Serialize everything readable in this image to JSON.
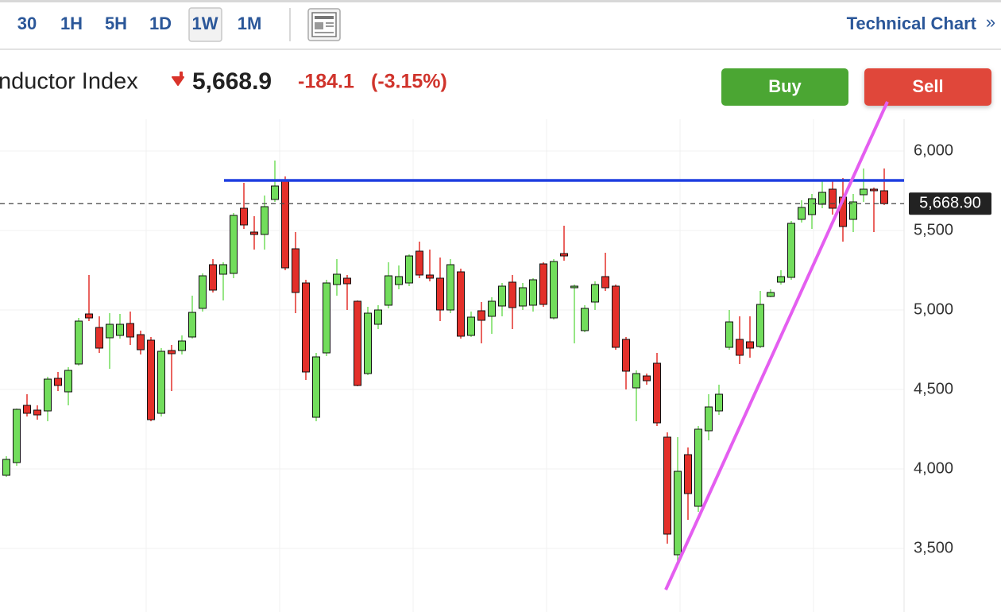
{
  "toolbar": {
    "intervals": [
      "30",
      "1H",
      "5H",
      "1D",
      "1W",
      "1M"
    ],
    "selected_index": 4,
    "link": "Technical Chart",
    "link_icon": "»"
  },
  "quote": {
    "name": "nductor Index",
    "price": "5,668.9",
    "change": "-184.1",
    "change_pct": "(-3.15%)"
  },
  "buttons": [
    "Buy",
    "Sell"
  ],
  "chart_data": {
    "type": "candlestick",
    "up_color": "#72dd5c",
    "down_color": "#e3302a",
    "open": [
      3960,
      4040,
      4400,
      4370,
      4365,
      4570,
      4485,
      4660,
      4975,
      4890,
      4825,
      4840,
      4915,
      4845,
      4810,
      4350,
      4745,
      4745,
      4830,
      5010,
      5285,
      5225,
      5230,
      5640,
      5490,
      5475,
      5695,
      5815,
      5385,
      5170,
      4325,
      4730,
      5160,
      5200,
      5055,
      4600,
      4910,
      5030,
      5160,
      5170,
      5370,
      5220,
      5200,
      5000,
      5240,
      4840,
      4995,
      4960,
      5025,
      5175,
      5025,
      5030,
      5290,
      4950,
      5355,
      5140,
      4870,
      5050,
      5210,
      5150,
      4815,
      4510,
      4585,
      4665,
      4200,
      3460,
      4090,
      3765,
      4240,
      4365,
      4765,
      4815,
      4800,
      4770,
      5085,
      5175,
      5205,
      5570,
      5600,
      5665,
      5760,
      5710,
      5570,
      5725,
      5760,
      5750
    ],
    "high": [
      4080,
      4380,
      4470,
      4400,
      4580,
      4610,
      4640,
      4950,
      5220,
      4960,
      4980,
      4975,
      4990,
      4870,
      4830,
      4760,
      4780,
      4840,
      5090,
      5230,
      5320,
      5300,
      5610,
      5800,
      5590,
      5720,
      5940,
      5840,
      5490,
      5190,
      4730,
      5190,
      5320,
      5220,
      5060,
      5020,
      5030,
      5300,
      5280,
      5350,
      5430,
      5380,
      5330,
      5320,
      5260,
      4990,
      5050,
      5080,
      5170,
      5220,
      5170,
      5200,
      5300,
      5320,
      5530,
      5160,
      5030,
      5180,
      5360,
      5160,
      4830,
      4620,
      4600,
      4730,
      4230,
      4200,
      4135,
      4270,
      4470,
      4530,
      5000,
      4960,
      4960,
      5120,
      5130,
      5250,
      5560,
      5690,
      5730,
      5810,
      5820,
      5830,
      5730,
      5890,
      5770,
      5890
    ],
    "low": [
      3950,
      4020,
      4330,
      4310,
      4300,
      4490,
      4400,
      4650,
      4930,
      4730,
      4630,
      4820,
      4780,
      4720,
      4300,
      4330,
      4490,
      4720,
      4820,
      4990,
      5110,
      5060,
      5200,
      5510,
      5380,
      5380,
      5680,
      5250,
      4980,
      4560,
      4300,
      4710,
      5090,
      5000,
      4520,
      4590,
      4880,
      5010,
      5130,
      5150,
      5200,
      5180,
      4930,
      4980,
      4820,
      4830,
      4790,
      4850,
      4960,
      4880,
      5000,
      4990,
      5020,
      4940,
      5310,
      4790,
      4860,
      5000,
      5120,
      4750,
      4500,
      4300,
      4530,
      4270,
      3530,
      3420,
      3680,
      3730,
      4180,
      4340,
      4750,
      4660,
      4700,
      4760,
      5080,
      5160,
      5190,
      5550,
      5510,
      5640,
      5600,
      5430,
      5490,
      5680,
      5490,
      5660
    ],
    "close": [
      4060,
      4375,
      4350,
      4340,
      4565,
      4525,
      4620,
      4930,
      4950,
      4760,
      4910,
      4910,
      4830,
      4750,
      4310,
      4740,
      4725,
      4805,
      4985,
      5215,
      5125,
      5285,
      5595,
      5535,
      5475,
      5650,
      5780,
      5265,
      5110,
      4610,
      4705,
      5170,
      5225,
      5165,
      4525,
      4980,
      5000,
      5215,
      5210,
      5340,
      5220,
      5200,
      5000,
      5285,
      4835,
      4955,
      4935,
      5055,
      5150,
      5015,
      5140,
      5190,
      5035,
      5305,
      5340,
      5150,
      5010,
      5160,
      5140,
      4765,
      4615,
      4600,
      4555,
      4290,
      3590,
      3985,
      3845,
      4250,
      4390,
      4470,
      4925,
      4715,
      4760,
      5035,
      5110,
      5210,
      5545,
      5645,
      5700,
      5740,
      5640,
      5525,
      5680,
      5760,
      5750,
      5668.9
    ],
    "ylim": [
      3100,
      6200
    ],
    "yticks": [
      {
        "value": 3500,
        "label": "3,500"
      },
      {
        "value": 4000,
        "label": "4,000"
      },
      {
        "value": 4500,
        "label": "4,500"
      },
      {
        "value": 5000,
        "label": "5,000"
      },
      {
        "value": 5500,
        "label": "5,500"
      },
      {
        "value": 6000,
        "label": "6,000"
      }
    ],
    "grid": true,
    "last_price": {
      "value": 5668.9,
      "label": "5,668.90"
    }
  }
}
